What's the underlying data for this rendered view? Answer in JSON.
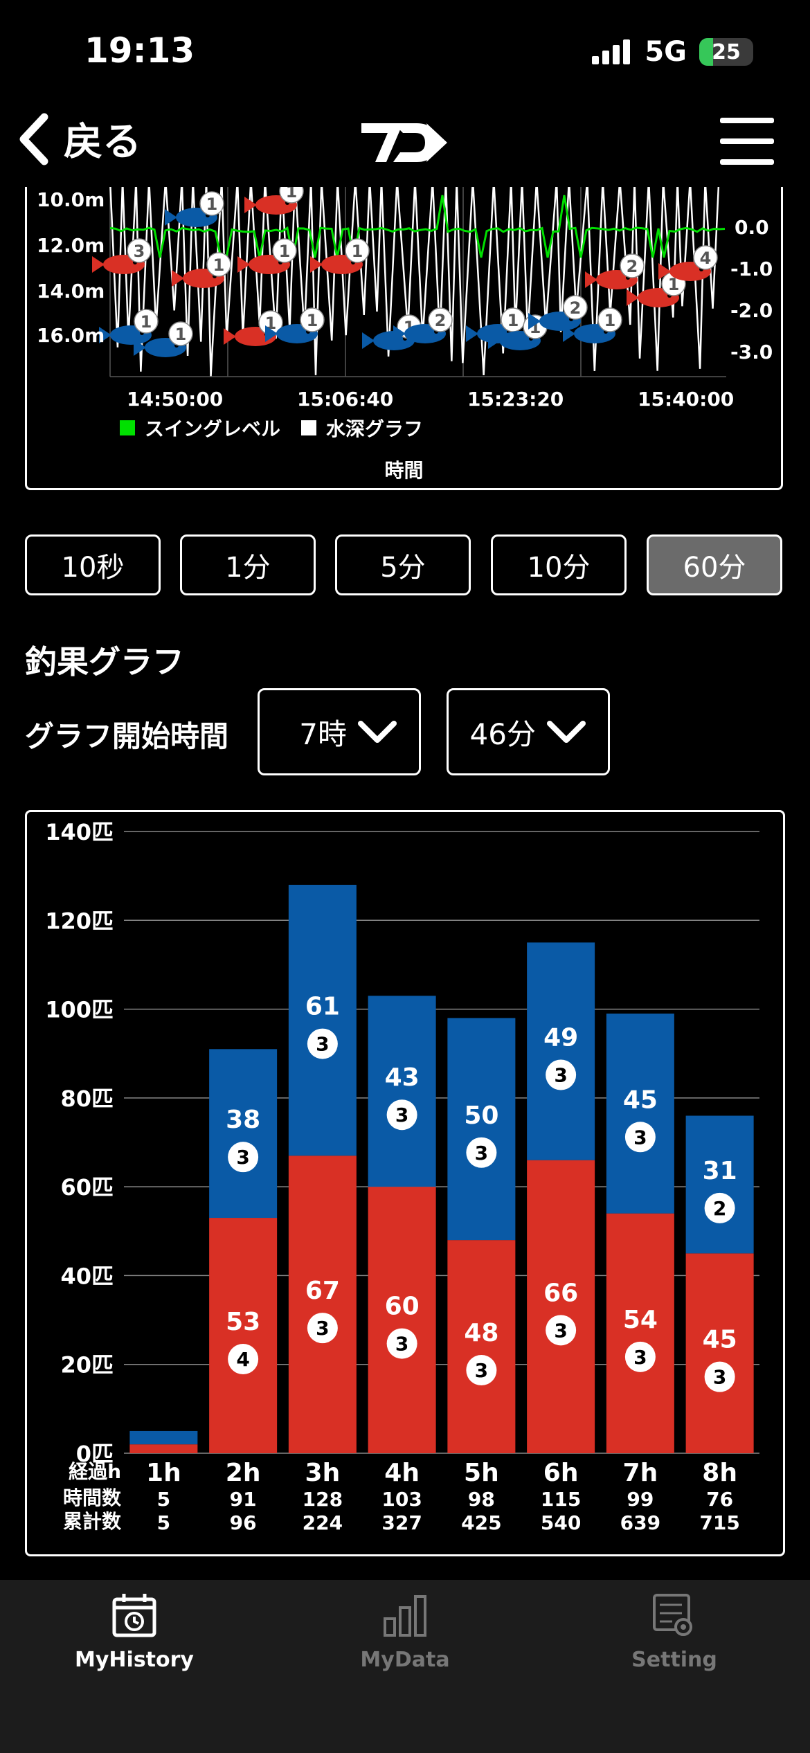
{
  "status": {
    "time": "19:13",
    "carrier": "5G",
    "battery": "25",
    "battery_level": 0.25
  },
  "nav": {
    "back_label": "戻る"
  },
  "top_chart": {
    "y_left": [
      "10.0m",
      "12.0m",
      "14.0m",
      "16.0m"
    ],
    "y_right": [
      "0.0",
      "-1.0",
      "-2.0",
      "-3.0"
    ],
    "x_ticks": [
      "14:50:00",
      "15:06:40",
      "15:23:20",
      "15:40:00"
    ],
    "legend": [
      "スイングレベル",
      "水深グラフ"
    ],
    "xlabel": "時間",
    "colors": {
      "swing": "#00e000",
      "depth": "#ffffff",
      "red_fish": "#d93025",
      "blue_fish": "#0a5aa6"
    },
    "fish_markers": [
      {
        "color": "blue",
        "n": "1"
      },
      {
        "color": "red",
        "n": "1"
      },
      {
        "color": "red",
        "n": "3"
      },
      {
        "color": "red",
        "n": "1"
      },
      {
        "color": "red",
        "n": "1"
      },
      {
        "color": "red",
        "n": "1"
      },
      {
        "color": "blue",
        "n": "1"
      },
      {
        "color": "blue",
        "n": "1"
      },
      {
        "color": "red",
        "n": "1"
      },
      {
        "color": "blue",
        "n": "1"
      },
      {
        "color": "blue",
        "n": "1"
      },
      {
        "color": "blue",
        "n": "2"
      },
      {
        "color": "blue",
        "n": "1"
      },
      {
        "color": "blue",
        "n": "1"
      },
      {
        "color": "blue",
        "n": "2"
      },
      {
        "color": "blue",
        "n": "1"
      },
      {
        "color": "red",
        "n": "2"
      },
      {
        "color": "red",
        "n": "1"
      },
      {
        "color": "red",
        "n": "4"
      }
    ]
  },
  "time_buttons": [
    "10秒",
    "1分",
    "5分",
    "10分",
    "60分"
  ],
  "active_time_button": "60分",
  "section_title": "釣果グラフ",
  "graph_start": {
    "label": "グラフ開始時間",
    "hour": "7時",
    "minute": "46分"
  },
  "chart_data": {
    "type": "bar",
    "stacked": true,
    "categories": [
      "1h",
      "2h",
      "3h",
      "4h",
      "5h",
      "6h",
      "7h",
      "8h"
    ],
    "series": [
      {
        "color": "#d93025",
        "values": [
          2,
          53,
          67,
          60,
          48,
          66,
          54,
          45
        ],
        "badges": [
          "",
          "4",
          "3",
          "3",
          "3",
          "3",
          "3",
          "3"
        ]
      },
      {
        "color": "#0a5aa6",
        "values": [
          3,
          38,
          61,
          43,
          50,
          49,
          45,
          31
        ],
        "badges": [
          "",
          "3",
          "3",
          "3",
          "3",
          "3",
          "3",
          "2"
        ]
      }
    ],
    "ylim": [
      0,
      140
    ],
    "yticks": [
      "0匹",
      "20匹",
      "40匹",
      "60匹",
      "80匹",
      "100匹",
      "120匹",
      "140匹"
    ],
    "row_labels": [
      "経過h",
      "時間数",
      "累計数"
    ],
    "hourly_totals": [
      "5",
      "91",
      "128",
      "103",
      "98",
      "115",
      "99",
      "76"
    ],
    "cumulative_totals": [
      "5",
      "96",
      "224",
      "327",
      "425",
      "540",
      "639",
      "715"
    ],
    "grid": true
  },
  "tabs": [
    {
      "label": "MyHistory",
      "icon": "calendar-history-icon",
      "active": true
    },
    {
      "label": "MyData",
      "icon": "bar-chart-icon",
      "active": false
    },
    {
      "label": "Setting",
      "icon": "settings-sliders-icon",
      "active": false
    }
  ]
}
